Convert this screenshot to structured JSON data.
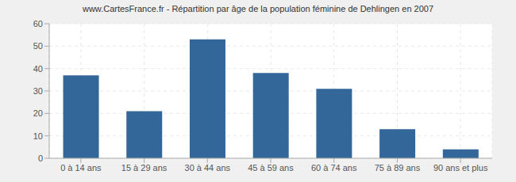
{
  "chart_data": {
    "type": "bar",
    "title": "www.CartesFrance.fr - Répartition par âge de la population féminine de Dehlingen en 2007",
    "categories": [
      "0 à 14 ans",
      "15 à 29 ans",
      "30 à 44 ans",
      "45 à 59 ans",
      "60 à 74 ans",
      "75 à 89 ans",
      "90 ans et plus"
    ],
    "values": [
      37,
      21,
      53,
      38,
      31,
      13,
      4
    ],
    "color": "#336699",
    "ylim": [
      0,
      60
    ],
    "yticks": [
      0,
      10,
      20,
      30,
      40,
      50,
      60
    ],
    "grid": true
  }
}
